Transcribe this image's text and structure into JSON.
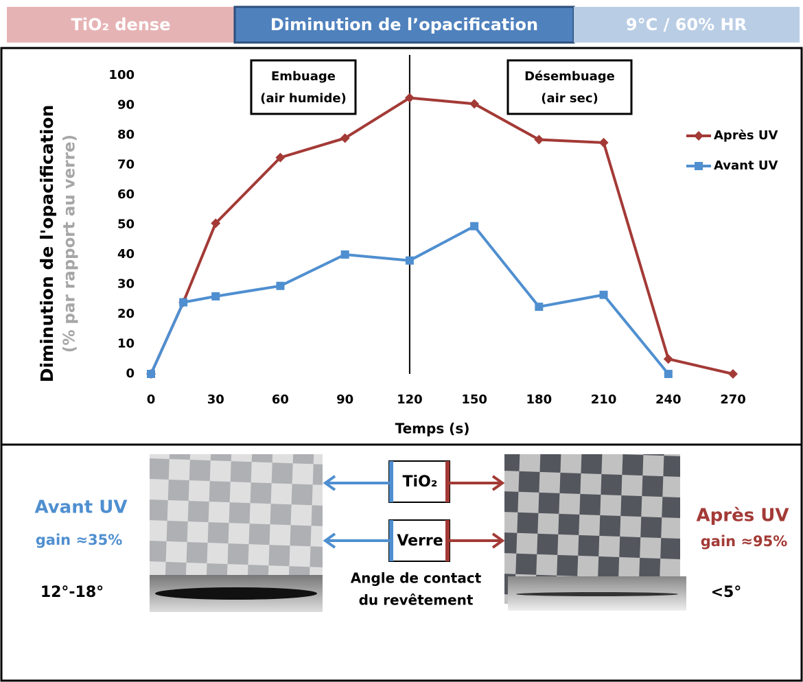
{
  "header": {
    "material": "TiO₂ dense",
    "title": "Diminution de l’opacification",
    "conditions": "9°C / 60% HR"
  },
  "chart_data": {
    "type": "line",
    "y_label": "Diminution de l'opacification",
    "y_sublabel": "(% par rapport au verre)",
    "x_label": "Temps (s)",
    "x": [
      0,
      15,
      30,
      60,
      90,
      120,
      150,
      180,
      210,
      240,
      270
    ],
    "series": [
      {
        "name": "Après UV",
        "color": "#a33a36",
        "marker": "diamond",
        "values": [
          0,
          24,
          50.5,
          72.5,
          79,
          92.5,
          90.5,
          78.5,
          77.5,
          5,
          0
        ]
      },
      {
        "name": "Avant UV",
        "color": "#4f8fd0",
        "marker": "square",
        "values": [
          0,
          24,
          26,
          29.5,
          40,
          38,
          49.5,
          22.5,
          26.5,
          0,
          null
        ]
      }
    ],
    "xlim": [
      0,
      270
    ],
    "xticks": [
      0,
      30,
      60,
      90,
      120,
      150,
      180,
      210,
      240,
      270
    ],
    "ylim": [
      0,
      100
    ],
    "yticks": [
      0,
      10,
      20,
      30,
      40,
      50,
      60,
      70,
      80,
      90,
      100
    ],
    "vline": 120,
    "annotations": [
      {
        "lines": [
          "Embuage",
          "(air humide)"
        ]
      },
      {
        "lines": [
          "Désembuage",
          "(air sec)"
        ]
      }
    ],
    "legend": "right",
    "grid": false
  },
  "lower_panel": {
    "left_label": "Avant UV",
    "left_gain": "gain ≈35%",
    "right_label": "Après UV",
    "right_gain": "gain ≈95%",
    "samples": [
      "TiO₂",
      "Verre"
    ],
    "left_angle": "12°-18°",
    "angle_caption": [
      "Angle de contact",
      "du revêtement"
    ],
    "right_angle": "<5°"
  }
}
